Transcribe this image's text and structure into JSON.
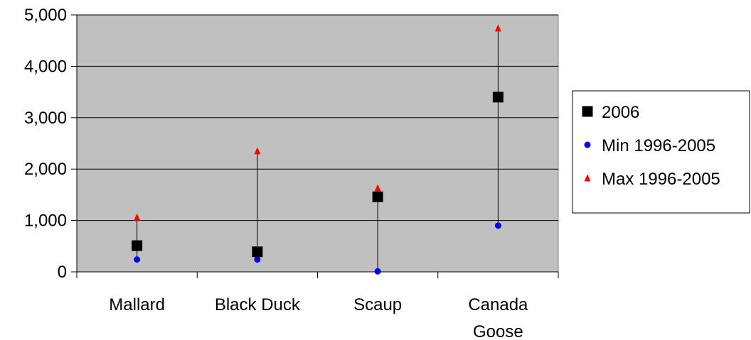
{
  "chart_data": {
    "type": "scatter",
    "categories": [
      "Mallard",
      "Black Duck",
      "Scaup",
      "Canada Goose"
    ],
    "category_label_lines": [
      [
        "Mallard"
      ],
      [
        "Black Duck"
      ],
      [
        "Scaup"
      ],
      [
        "Canada",
        "Goose"
      ]
    ],
    "ylim": [
      0,
      5000
    ],
    "yticks": [
      0,
      1000,
      2000,
      3000,
      4000,
      5000
    ],
    "ytick_labels": [
      "0",
      "1,000",
      "2,000",
      "3,000",
      "4,000",
      "5,000"
    ],
    "grid": true,
    "legend_position": "right",
    "range_lines": true,
    "series": [
      {
        "name": "2006",
        "marker": "square",
        "color": "#000000",
        "values": [
          510,
          390,
          1460,
          3400
        ]
      },
      {
        "name": "Min 1996-2005",
        "marker": "circle",
        "color": "#0000ff",
        "values": [
          240,
          240,
          10,
          900
        ]
      },
      {
        "name": "Max 1996-2005",
        "marker": "triangle",
        "color": "#ff0000",
        "values": [
          1060,
          2350,
          1630,
          4740
        ]
      }
    ]
  },
  "colors": {
    "plot_background": "#c0c0c0",
    "gridline": "#000000"
  }
}
